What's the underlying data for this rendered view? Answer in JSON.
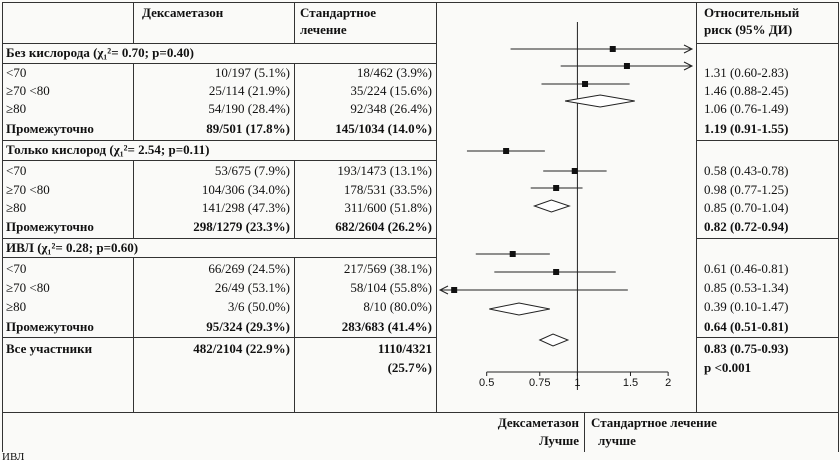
{
  "header": {
    "col_dex": "Дексаметазон",
    "col_std_line1": "Стандартное",
    "col_std_line2": "лечение",
    "col_rr_line1": "Относительный",
    "col_rr_line2": "риск (95% ДИ)"
  },
  "footer": {
    "left_line1": "Дексаметазон",
    "left_line2": "Лучше",
    "right_line1": "Стандартное лечение",
    "right_line2": "лучше",
    "cutoff": "ИВЛ"
  },
  "groups": [
    {
      "title": "Без кислорода (χ₁²= 0.70; p=0.40)",
      "rows": [
        {
          "label": "<70",
          "dex": "10/197 (5.1%)",
          "std": "18/462 (3.9%)",
          "rr": "1.31 (0.60-2.83)",
          "bold": false
        },
        {
          "label": "≥70 <80",
          "dex": "25/114 (21.9%)",
          "std": "35/224 (15.6%)",
          "rr": "1.46 (0.88-2.45)",
          "bold": false
        },
        {
          "label": "≥80",
          "dex": "54/190 (28.4%)",
          "std": "92/348 (26.4%)",
          "rr": "1.06 (0.76-1.49)",
          "bold": false
        },
        {
          "label": "Промежуточно",
          "dex": "89/501 (17.8%)",
          "std": "145/1034 (14.0%)",
          "rr": "1.19 (0.91-1.55)",
          "bold": true
        }
      ]
    },
    {
      "title": "Только кислород (χ₁²= 2.54; p=0.11)",
      "rows": [
        {
          "label": "<70",
          "dex": "53/675 (7.9%)",
          "std": "193/1473 (13.1%)",
          "rr": "0.58 (0.43-0.78)",
          "bold": false
        },
        {
          "label": "≥70 <80",
          "dex": "104/306 (34.0%)",
          "std": "178/531 (33.5%)",
          "rr": "0.98 (0.77-1.25)",
          "bold": false
        },
        {
          "label": "≥80",
          "dex": "141/298 (47.3%)",
          "std": "311/600 (51.8%)",
          "rr": "0.85 (0.70-1.04)",
          "bold": false
        },
        {
          "label": "Промежуточно",
          "dex": "298/1279 (23.3%)",
          "std": "682/2604 (26.2%)",
          "rr": "0.82 (0.72-0.94)",
          "bold": true
        }
      ]
    },
    {
      "title": "ИВЛ (χ₁²= 0.28; p=0.60)",
      "rows": [
        {
          "label": "<70",
          "dex": "66/269 (24.5%)",
          "std": "217/569 (38.1%)",
          "rr": "0.61 (0.46-0.81)",
          "bold": false
        },
        {
          "label": "≥70 <80",
          "dex": "26/49 (53.1%)",
          "std": "58/104 (55.8%)",
          "rr": "0.85 (0.53-1.34)",
          "bold": false
        },
        {
          "label": "≥80",
          "dex": "3/6 (50.0%)",
          "std": "8/10 (80.0%)",
          "rr": "0.39 (0.10-1.47)",
          "bold": false
        },
        {
          "label": "Промежуточно",
          "dex": "95/324 (29.3%)",
          "std": "283/683 (41.4%)",
          "rr": "0.64 (0.51-0.81)",
          "bold": true
        }
      ]
    }
  ],
  "overall": {
    "label": "Все участники",
    "dex": "482/2104 (22.9%)",
    "std_line1": "1110/4321",
    "std_line2": "(25.7%)",
    "rr": "0.83 (0.75-0.93)",
    "p": "p <0.001"
  },
  "chart_data": {
    "type": "scatter",
    "subtype": "forest plot",
    "scale": "log",
    "x_ticks": [
      "0.5",
      "0.75",
      "1",
      "1.5",
      "2"
    ],
    "x_tick_values": [
      0.5,
      0.75,
      1,
      1.5,
      2
    ],
    "xlim": [
      0.35,
      2.4
    ],
    "reference_line": 1,
    "rows": [
      {
        "est": 1.31,
        "lo": 0.6,
        "hi": 2.83,
        "kind": "point"
      },
      {
        "est": 1.46,
        "lo": 0.88,
        "hi": 2.45,
        "kind": "point"
      },
      {
        "est": 1.06,
        "lo": 0.76,
        "hi": 1.49,
        "kind": "point"
      },
      {
        "est": 1.19,
        "lo": 0.91,
        "hi": 1.55,
        "kind": "diamond"
      },
      {
        "est": 0.58,
        "lo": 0.43,
        "hi": 0.78,
        "kind": "point"
      },
      {
        "est": 0.98,
        "lo": 0.77,
        "hi": 1.25,
        "kind": "point"
      },
      {
        "est": 0.85,
        "lo": 0.7,
        "hi": 1.04,
        "kind": "point"
      },
      {
        "est": 0.82,
        "lo": 0.72,
        "hi": 0.94,
        "kind": "diamond"
      },
      {
        "est": 0.61,
        "lo": 0.46,
        "hi": 0.81,
        "kind": "point"
      },
      {
        "est": 0.85,
        "lo": 0.53,
        "hi": 1.34,
        "kind": "point"
      },
      {
        "est": 0.39,
        "lo": 0.1,
        "hi": 1.47,
        "kind": "point"
      },
      {
        "est": 0.64,
        "lo": 0.51,
        "hi": 0.81,
        "kind": "diamond"
      },
      {
        "est": 0.83,
        "lo": 0.75,
        "hi": 0.93,
        "kind": "diamond"
      }
    ]
  }
}
